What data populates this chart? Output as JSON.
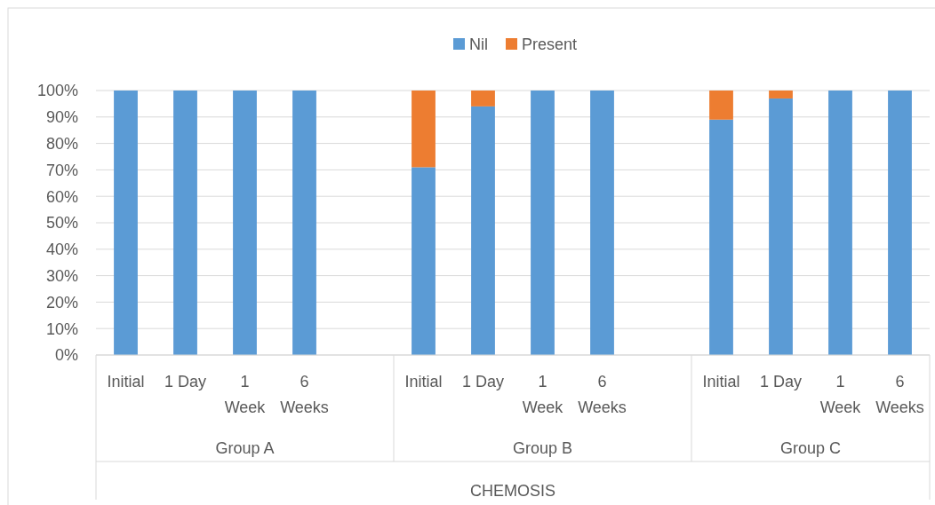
{
  "chart_data": {
    "type": "bar",
    "stacked": true,
    "xlabel": "CHEMOSIS",
    "categories": [
      "Initial",
      "1 Day",
      "1 Week",
      "6 Weeks",
      null,
      "Initial",
      "1 Day",
      "1 Week",
      "6 Weeks",
      null,
      "Initial",
      "1 Day",
      "1 Week",
      "6 Weeks"
    ],
    "series": [
      {
        "name": "Nil",
        "color": "#5b9bd5",
        "values": [
          100,
          100,
          100,
          100,
          null,
          71,
          94,
          100,
          100,
          null,
          89,
          97,
          100,
          100
        ]
      },
      {
        "name": "Present",
        "color": "#ed7d31",
        "values": [
          0,
          0,
          0,
          0,
          null,
          29,
          6,
          0,
          0,
          null,
          11,
          3,
          0,
          0
        ]
      }
    ],
    "annotations": [
      "Group A",
      "Group B",
      "Group C"
    ],
    "ylim": [
      0,
      100
    ],
    "yticks": [
      {
        "value": 0,
        "label": "0%"
      },
      {
        "value": 10,
        "label": "10%"
      },
      {
        "value": 20,
        "label": "20%"
      },
      {
        "value": 30,
        "label": "30%"
      },
      {
        "value": 40,
        "label": "40%"
      },
      {
        "value": 50,
        "label": "50%"
      },
      {
        "value": 60,
        "label": "60%"
      },
      {
        "value": 70,
        "label": "70%"
      },
      {
        "value": 80,
        "label": "80%"
      },
      {
        "value": 90,
        "label": "90%"
      },
      {
        "value": 100,
        "label": "100%"
      }
    ],
    "grid": "y",
    "legend": "top"
  }
}
